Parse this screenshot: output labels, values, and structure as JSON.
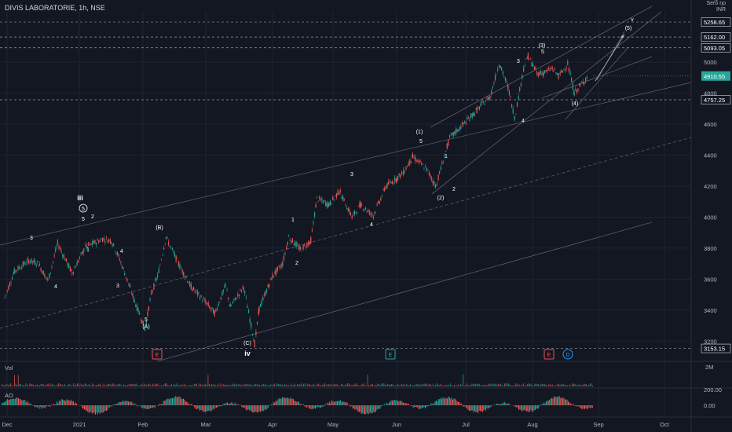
{
  "header": {
    "title": "DIVIS LABORATORIE, 1h, NSE"
  },
  "currency": {
    "line1": "Śeŕδ ŋo",
    "line2": "INR"
  },
  "colors": {
    "bg": "#131722",
    "up": "#26a69a",
    "down": "#ef5350",
    "grid": "#1f2330",
    "channel": "#787b86",
    "text": "#d1d4dc",
    "current": "#26a69a"
  },
  "chart_data": {
    "type": "candlestick",
    "title": "DIVIS LABORATORIE, 1h, NSE",
    "y_ticks": [
      3200,
      3400,
      3600,
      3800,
      4000,
      4200,
      4400,
      4600,
      4800,
      5000
    ],
    "ylim": [
      3080,
      5330
    ],
    "x_ticks": [
      "Dec",
      "2021",
      "Feb",
      "Mar",
      "Apr",
      "May",
      "Jun",
      "Jul",
      "Aug",
      "Sep",
      "Oct"
    ],
    "price_levels": [
      {
        "value": 5258.65,
        "label": "5258.65"
      },
      {
        "value": 5162.0,
        "label": "5162.00"
      },
      {
        "value": 5093.05,
        "label": "5093.05"
      },
      {
        "value": 4757.25,
        "label": "4757.25"
      },
      {
        "value": 3153.15,
        "label": "3153.15"
      }
    ],
    "current_price": {
      "value": 4910.55,
      "label": "4910.55"
    },
    "series": [
      {
        "name": "price_path",
        "x": [
          "Nov 30",
          "Dec 04",
          "Dec 10",
          "Dec 14",
          "Dec 18",
          "Dec 22",
          "Dec 28",
          "Jan 04",
          "Jan 06",
          "Jan 12",
          "Jan 16",
          "Jan 20",
          "Jan 25",
          "Jan 27",
          "Feb 02",
          "Feb 05",
          "Feb 08",
          "Feb 12",
          "Feb 18",
          "Feb 24",
          "Mar 01",
          "Mar 05",
          "Mar 10",
          "Mar 12",
          "Mar 18",
          "Mar 23",
          "Mar 25",
          "Apr 01",
          "Apr 06",
          "Apr 09",
          "Apr 15",
          "Apr 20",
          "Apr 23",
          "Apr 29",
          "May 04",
          "May 10",
          "May 14",
          "May 20",
          "May 26",
          "Jun 01",
          "Jun 04",
          "Jun 08",
          "Jun 14",
          "Jun 18",
          "Jun 24",
          "Jun 30",
          "Jul 06",
          "Jul 12",
          "Jul 16",
          "Jul 20",
          "Jul 23",
          "Jul 27",
          "Jul 29",
          "Aug 03",
          "Aug 06",
          "Aug 10",
          "Aug 13",
          "Aug 17",
          "Aug 20",
          "Aug 24",
          "Aug 26"
        ],
        "y": [
          3480,
          3650,
          3720,
          3700,
          3590,
          3830,
          3640,
          3810,
          3820,
          3860,
          3850,
          3730,
          3540,
          3460,
          3280,
          3510,
          3620,
          3870,
          3700,
          3550,
          3450,
          3380,
          3560,
          3420,
          3550,
          3180,
          3410,
          3620,
          3700,
          3870,
          3790,
          3850,
          4120,
          4080,
          4170,
          4000,
          4080,
          4010,
          4200,
          4250,
          4290,
          4390,
          4310,
          4200,
          4510,
          4600,
          4690,
          4780,
          4990,
          4840,
          4640,
          4960,
          5040,
          4930,
          4930,
          4960,
          4910,
          4990,
          4800,
          4870,
          4910
        ]
      }
    ],
    "wave_labels": [
      "iii",
      "5",
      "5",
      "2",
      "3",
      "4",
      "1",
      "4",
      "3",
      "5",
      "(A)",
      "(B)",
      "iv",
      "(C)",
      "1",
      "2",
      "3",
      "4",
      "(1)",
      "5",
      "1",
      "2",
      "(2)",
      "3",
      "4",
      "(3)",
      "5",
      "(4)",
      "v",
      "(5)"
    ],
    "event_markers": [
      "E",
      "E",
      "E",
      "D"
    ],
    "volume": {
      "label": "Vol",
      "tick": "2M"
    },
    "ao": {
      "label": "AO",
      "ticks": [
        "200.00",
        "0.00"
      ]
    }
  }
}
